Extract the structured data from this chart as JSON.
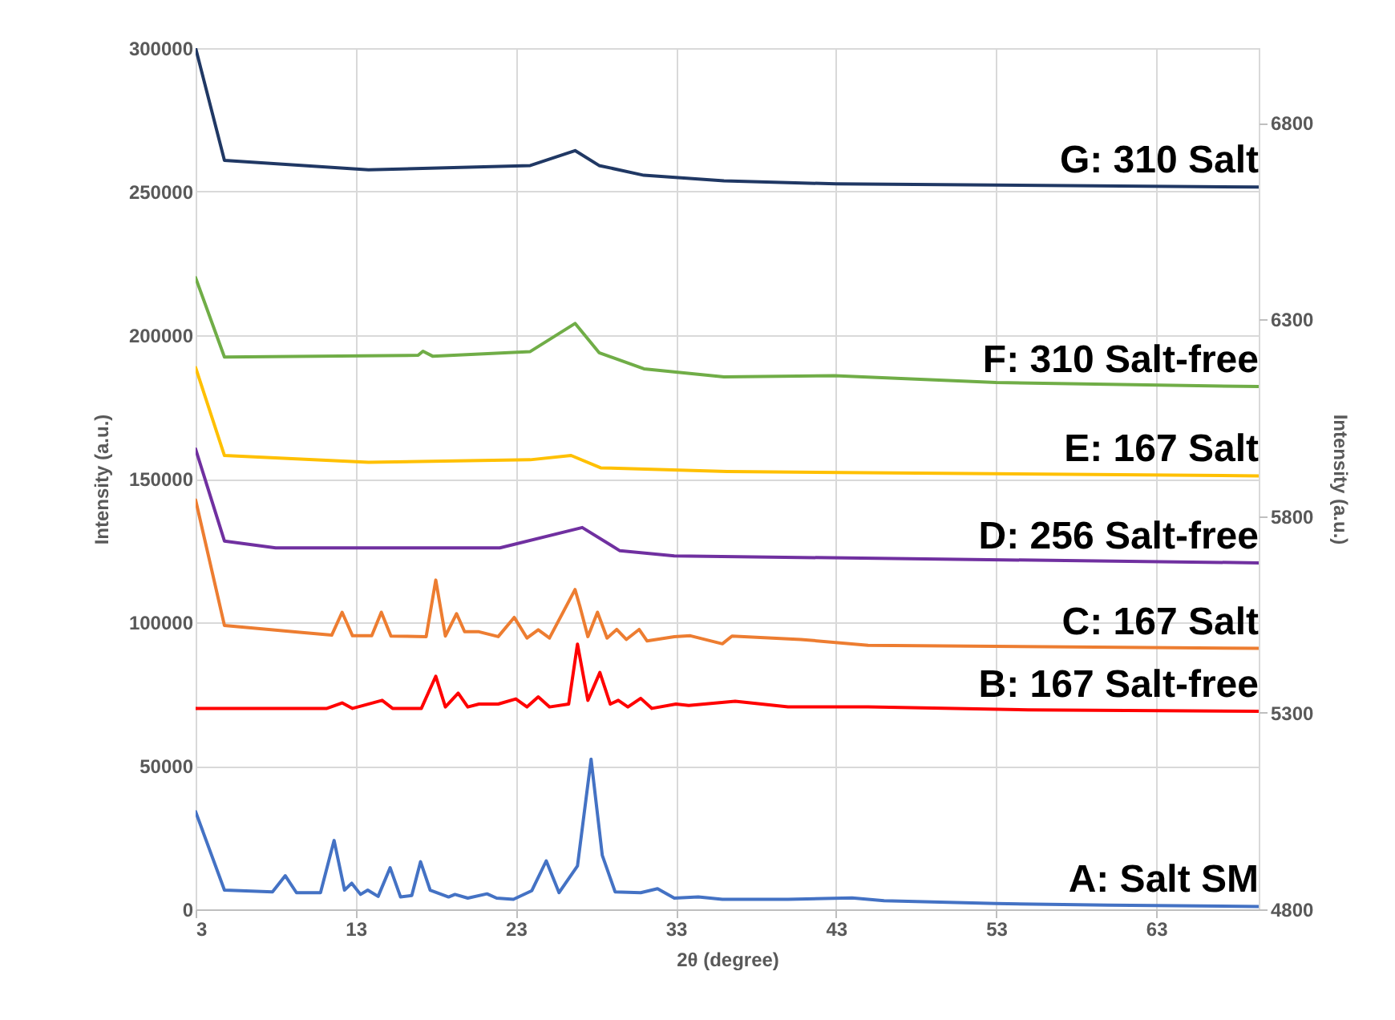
{
  "chart_data": {
    "type": "line",
    "xlabel": "2θ (degree)",
    "ylabel": "Intensity (a.u.)",
    "y2label": "Intensity (a.u.)",
    "xlim": [
      3,
      69.4
    ],
    "xticks": [
      3,
      13,
      23,
      33,
      43,
      53,
      63
    ],
    "ylim": [
      0,
      300000
    ],
    "yticks": [
      0,
      50000,
      100000,
      150000,
      200000,
      250000,
      300000
    ],
    "y2lim": [
      4800,
      6990
    ],
    "y2ticks": [
      4800,
      5300,
      5800,
      6300,
      6800
    ],
    "grid": true,
    "line_style": "solid",
    "series": [
      {
        "name": "A: Salt SM",
        "color": "#4472c4",
        "x": [
          3,
          4.8,
          7.8,
          8.6,
          9.3,
          10.8,
          11.65,
          12.3,
          12.75,
          13.3,
          13.75,
          14.4,
          15.15,
          15.8,
          16.5,
          17.05,
          17.65,
          18.8,
          19.2,
          20,
          21.2,
          21.8,
          22.85,
          24,
          24.9,
          25.7,
          26.85,
          27.7,
          28.4,
          29.2,
          30.8,
          31.85,
          32.9,
          34.4,
          35.9,
          40,
          44,
          46,
          53,
          60,
          69.4
        ],
        "values": [
          34000,
          6700,
          6100,
          11700,
          5800,
          5800,
          24000,
          6700,
          9100,
          5200,
          6700,
          4500,
          14500,
          4300,
          4800,
          16600,
          6700,
          4300,
          5200,
          3900,
          5400,
          3900,
          3500,
          6500,
          16900,
          5800,
          15100,
          52300,
          18800,
          6100,
          5800,
          7200,
          3900,
          4300,
          3500,
          3500,
          4000,
          3000,
          2000,
          1500,
          1000
        ]
      },
      {
        "name": "B: 167 Salt-free",
        "color": "#ff0000",
        "x": [
          3,
          11.2,
          12.15,
          12.8,
          14.65,
          15.3,
          17.1,
          18,
          18.6,
          19.4,
          20,
          20.7,
          21.9,
          23,
          23.7,
          24.4,
          25.1,
          26.3,
          26.85,
          27.5,
          28.25,
          28.9,
          29.4,
          30,
          30.8,
          31.5,
          33,
          33.8,
          36.7,
          40,
          45,
          55,
          69.4
        ],
        "values": [
          70000,
          70000,
          71900,
          70000,
          72800,
          70000,
          70000,
          81200,
          70500,
          75300,
          70500,
          71500,
          71500,
          73300,
          70500,
          74000,
          70500,
          71500,
          92400,
          72800,
          82500,
          71500,
          72800,
          70500,
          73500,
          70000,
          71500,
          71000,
          72500,
          70500,
          70500,
          69500,
          69000
        ]
      },
      {
        "name": "C: 167 Salt",
        "color": "#ed7d31",
        "x": [
          3,
          4.8,
          9.5,
          11.5,
          12.15,
          12.8,
          14,
          14.6,
          15.2,
          17.4,
          18,
          18.6,
          19.3,
          19.8,
          20.7,
          21.9,
          22.9,
          23.7,
          24.4,
          25.1,
          26.7,
          27,
          27.5,
          28.1,
          28.7,
          29.3,
          29.9,
          30.7,
          31.2,
          32.9,
          33.9,
          35.9,
          36.5,
          40.8,
          45,
          69.4
        ],
        "values": [
          142600,
          98900,
          96500,
          95500,
          103500,
          95300,
          95300,
          103500,
          95200,
          95000,
          114700,
          95200,
          103000,
          96700,
          96700,
          95000,
          101700,
          94500,
          97400,
          94500,
          111400,
          105600,
          95000,
          103500,
          94500,
          97500,
          94000,
          97500,
          93500,
          95000,
          95300,
          92500,
          95200,
          94000,
          92000,
          90900
        ]
      },
      {
        "name": "D: 256 Salt-free",
        "color": "#7030a0",
        "x": [
          3,
          4.8,
          8,
          22,
          27.15,
          29.5,
          32.9,
          69.4
        ],
        "values": [
          160300,
          128300,
          125900,
          125900,
          133000,
          124900,
          123100,
          120700
        ]
      },
      {
        "name": "E: 167 Salt",
        "color": "#ffc000",
        "x": [
          3,
          4.8,
          13.8,
          23.9,
          26.45,
          28.3,
          36.2,
          69.4
        ],
        "values": [
          188700,
          158100,
          155700,
          156600,
          158100,
          153800,
          152500,
          151000
        ]
      },
      {
        "name": "F: 310 Salt-free",
        "color": "#70ad47",
        "x": [
          3,
          4.8,
          16.9,
          17.2,
          17.8,
          23.9,
          26.7,
          28.2,
          31,
          36,
          42.9,
          53,
          69.4
        ],
        "values": [
          220000,
          192400,
          193000,
          194400,
          192700,
          194300,
          204100,
          193900,
          188300,
          185500,
          185900,
          183500,
          182100
        ]
      },
      {
        "name": "G: 310 Salt",
        "color": "#203864",
        "x": [
          3,
          4.8,
          13.8,
          23.9,
          26.7,
          28.2,
          31,
          36,
          43,
          69.4
        ],
        "values": [
          300000,
          260900,
          257600,
          259100,
          264300,
          259100,
          255700,
          253800,
          252700,
          251600
        ]
      }
    ]
  }
}
